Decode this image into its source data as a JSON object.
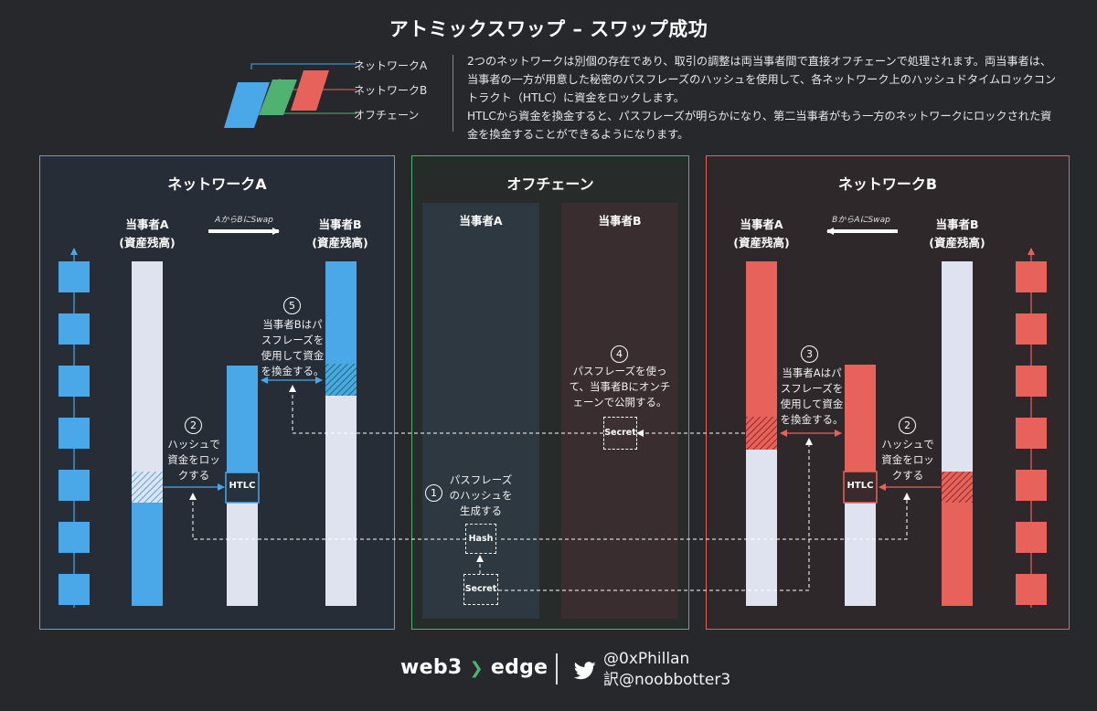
{
  "title": "アトミックスワップ – スワップ成功",
  "legend": {
    "network_a": "ネットワークA",
    "network_b": "ネットワークB",
    "offchain": "オフチェーン",
    "colors": {
      "network_a": "#4aa8e8",
      "network_b": "#e8625c",
      "offchain": "#4fb273"
    }
  },
  "description": {
    "para1": "2つのネットワークは別個の存在であり、取引の調整は両当事者間で直接オフチェーンで処理されます。両当事者は、当事者の一方が用意した秘密のパスフレーズのハッシュを使用して、各ネットワーク上のハッシュドタイムロックコントラクト（HTLC）に資金をロックします。",
    "para2": "HTLCから資金を換金すると、パスフレーズが明らかになり、第二当事者がもう一方のネットワークにロックされた資金を換金することができるようになります。"
  },
  "panels": {
    "network_a": {
      "title": "ネットワークA",
      "party_a": "当事者A\n(資産残高)",
      "party_b": "当事者B\n(資産残高)",
      "swap_label": "AからBにSwap",
      "step2_num": "2",
      "step2_text": "ハッシュで\n資金をロッ\nクする",
      "step5_num": "5",
      "step5_text": "当事者Bはパ\nスフレーズを\n使用して資金\nを換金する。",
      "htlc": "HTLC"
    },
    "offchain": {
      "title": "オフチェーン",
      "party_a": "当事者A",
      "party_b": "当事者B",
      "step1_num": "1",
      "step1_text": "パスフレーズ\nのハッシュを\n生成する",
      "step4_num": "4",
      "step4_text": "パスフレーズを使っ\nて、当事者Bにオンチ\nェーンで公開する。",
      "hash": "Hash",
      "secret": "Secret",
      "secret_b": "Secret"
    },
    "network_b": {
      "title": "ネットワークB",
      "party_a": "当事者A\n(資産残高)",
      "party_b": "当事者B\n(資産残高)",
      "swap_label": "BからAにSwap",
      "step2_num": "2",
      "step2_text": "ハッシュで\n資金をロッ\nクする",
      "step3_num": "3",
      "step3_text": "当事者Aはパ\nスフレーズを\n使用して資金\nを換金する。",
      "htlc": "HTLC"
    }
  },
  "footer": {
    "brand_left": "web3",
    "brand_sep": "❯",
    "brand_right": "edge",
    "handle1": "@0xPhillan",
    "handle2": "訳@noobbotter3"
  }
}
